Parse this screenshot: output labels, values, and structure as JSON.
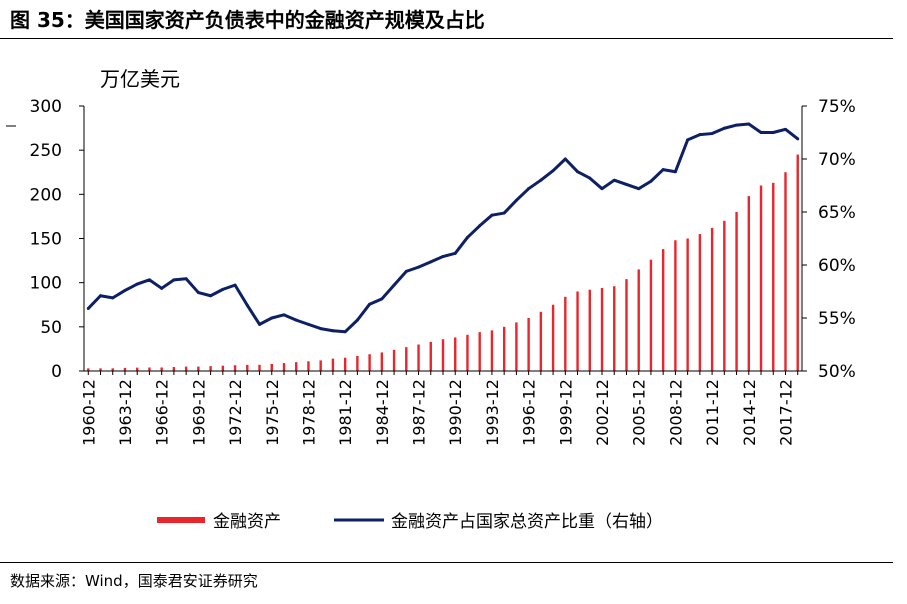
{
  "figure": {
    "title": "图 35：美国国家资产负债表中的金融资产规模及占比",
    "source": "数据来源：Wind，国泰君安证券研究"
  },
  "chart_data": {
    "type": "bar+line",
    "unit_label": "万亿美元",
    "y_left": {
      "min": 0,
      "max": 300,
      "ticks": [
        "0",
        "50",
        "100",
        "150",
        "200",
        "250",
        "300"
      ]
    },
    "y_right": {
      "min": 50,
      "max": 75,
      "ticks": [
        "50%",
        "55%",
        "60%",
        "65%",
        "70%",
        "75%"
      ]
    },
    "x_tick_labels": [
      "1960-12",
      "1963-12",
      "1966-12",
      "1969-12",
      "1972-12",
      "1975-12",
      "1978-12",
      "1981-12",
      "1984-12",
      "1987-12",
      "1990-12",
      "1993-12",
      "1996-12",
      "1999-12",
      "2002-12",
      "2005-12",
      "2008-12",
      "2011-12",
      "2014-12",
      "2017-12"
    ],
    "years": [
      1960,
      1961,
      1962,
      1963,
      1964,
      1965,
      1966,
      1967,
      1968,
      1969,
      1970,
      1971,
      1972,
      1973,
      1974,
      1975,
      1976,
      1977,
      1978,
      1979,
      1980,
      1981,
      1982,
      1983,
      1984,
      1985,
      1986,
      1987,
      1988,
      1989,
      1990,
      1991,
      1992,
      1993,
      1994,
      1995,
      1996,
      1997,
      1998,
      1999,
      2000,
      2001,
      2002,
      2003,
      2004,
      2005,
      2006,
      2007,
      2008,
      2009,
      2010,
      2011,
      2012,
      2013,
      2014,
      2015,
      2016,
      2017,
      2018
    ],
    "series": [
      {
        "name": "金融资产",
        "kind": "bar",
        "axis": "left",
        "color": "#e8262b",
        "values": [
          3,
          3,
          3,
          3.5,
          3.8,
          4,
          4,
          4.5,
          5,
          5,
          5.5,
          6,
          6.5,
          7,
          7,
          8,
          9,
          10,
          11,
          12,
          14,
          15,
          17,
          19,
          21,
          24,
          27,
          30,
          33,
          36,
          38,
          41,
          44,
          46,
          50,
          55,
          60,
          67,
          75,
          84,
          90,
          92,
          94,
          96,
          104,
          115,
          126,
          138,
          148,
          150,
          155,
          162,
          170,
          180,
          198,
          210,
          213,
          225,
          245
        ]
      },
      {
        "name": "金融资产占国家总资产比重（右轴）",
        "kind": "line",
        "axis": "right",
        "color": "#0d1f66",
        "values": [
          55.9,
          57.1,
          56.9,
          57.6,
          58.2,
          58.6,
          57.8,
          58.6,
          58.7,
          57.4,
          57.1,
          57.7,
          58.1,
          56.2,
          54.4,
          55.0,
          55.3,
          54.8,
          54.4,
          54.0,
          53.8,
          53.7,
          54.8,
          56.3,
          56.8,
          58.1,
          59.4,
          59.8,
          60.3,
          60.8,
          61.1,
          62.6,
          63.7,
          64.7,
          64.9,
          66.1,
          67.2,
          68.0,
          68.9,
          70.0,
          68.8,
          68.2,
          67.2,
          68.0,
          67.6,
          67.2,
          67.9,
          69.0,
          68.8,
          71.8,
          72.3,
          72.4,
          72.9,
          73.2,
          73.3,
          72.5,
          72.5,
          72.8,
          71.9
        ]
      }
    ],
    "legend_position": "bottom",
    "grid": false
  }
}
